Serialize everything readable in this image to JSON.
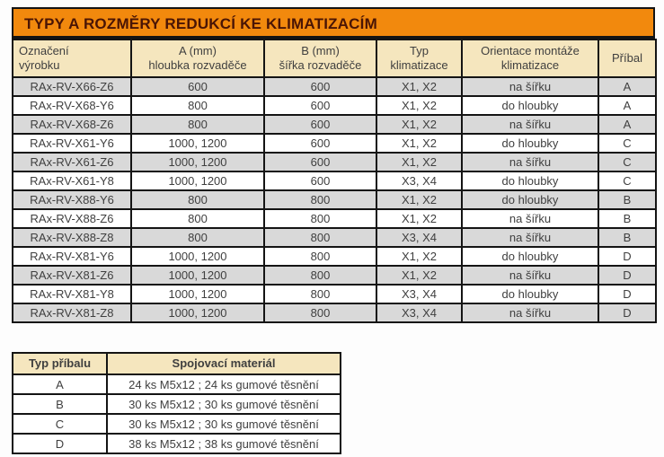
{
  "colors": {
    "title_bg": "#F2890D",
    "title_text": "#4A1505",
    "header_bg": "#F5E6BE",
    "row_gray": "#D9D9D9",
    "row_white": "#FFFFFF",
    "cell_text": "#3F3F3F",
    "border": "#141414"
  },
  "main_table": {
    "title": "TYPY A ROZMĚRY REDUKCÍ KE KLIMATIZACÍM",
    "headers": [
      "Označení\nvýrobku",
      "A (mm)\nhloubka rozvaděče",
      "B (mm)\nšířka rozvaděče",
      "Typ\nklimatizace",
      "Orientace montáže\nklimatizace",
      "Příbal"
    ],
    "rows": [
      [
        "RAx-RV-X66-Z6",
        "600",
        "600",
        "X1, X2",
        "na šířku",
        "A"
      ],
      [
        "RAx-RV-X68-Y6",
        "800",
        "600",
        "X1, X2",
        "do hloubky",
        "A"
      ],
      [
        "RAx-RV-X68-Z6",
        "800",
        "600",
        "X1, X2",
        "na šířku",
        "A"
      ],
      [
        "RAx-RV-X61-Y6",
        "1000, 1200",
        "600",
        "X1, X2",
        "do hloubky",
        "C"
      ],
      [
        "RAx-RV-X61-Z6",
        "1000, 1200",
        "600",
        "X1, X2",
        "na šířku",
        "C"
      ],
      [
        "RAx-RV-X61-Y8",
        "1000, 1200",
        "600",
        "X3, X4",
        "do hloubky",
        "C"
      ],
      [
        "RAx-RV-X88-Y6",
        "800",
        "800",
        "X1, X2",
        "do hloubky",
        "B"
      ],
      [
        "RAx-RV-X88-Z6",
        "800",
        "800",
        "X1, X2",
        "na šířku",
        "B"
      ],
      [
        "RAx-RV-X88-Z8",
        "800",
        "800",
        "X3, X4",
        "na šířku",
        "B"
      ],
      [
        "RAx-RV-X81-Y6",
        "1000, 1200",
        "800",
        "X1, X2",
        "do hloubky",
        "D"
      ],
      [
        "RAx-RV-X81-Z6",
        "1000, 1200",
        "800",
        "X1, X2",
        "na šířku",
        "D"
      ],
      [
        "RAx-RV-X81-Y8",
        "1000, 1200",
        "800",
        "X3, X4",
        "do hloubky",
        "D"
      ],
      [
        "RAx-RV-X81-Z8",
        "1000, 1200",
        "800",
        "X3, X4",
        "na šířku",
        "D"
      ]
    ]
  },
  "accessory_table": {
    "headers": [
      "Typ příbalu",
      "Spojovací materiál"
    ],
    "rows": [
      [
        "A",
        "24 ks M5x12 ; 24 ks gumové těsnění"
      ],
      [
        "B",
        "30 ks M5x12 ; 30 ks gumové těsnění"
      ],
      [
        "C",
        "30 ks M5x12 ; 30 ks gumové těsnění"
      ],
      [
        "D",
        "38 ks M5x12 ; 38 ks gumové těsnění"
      ]
    ]
  }
}
